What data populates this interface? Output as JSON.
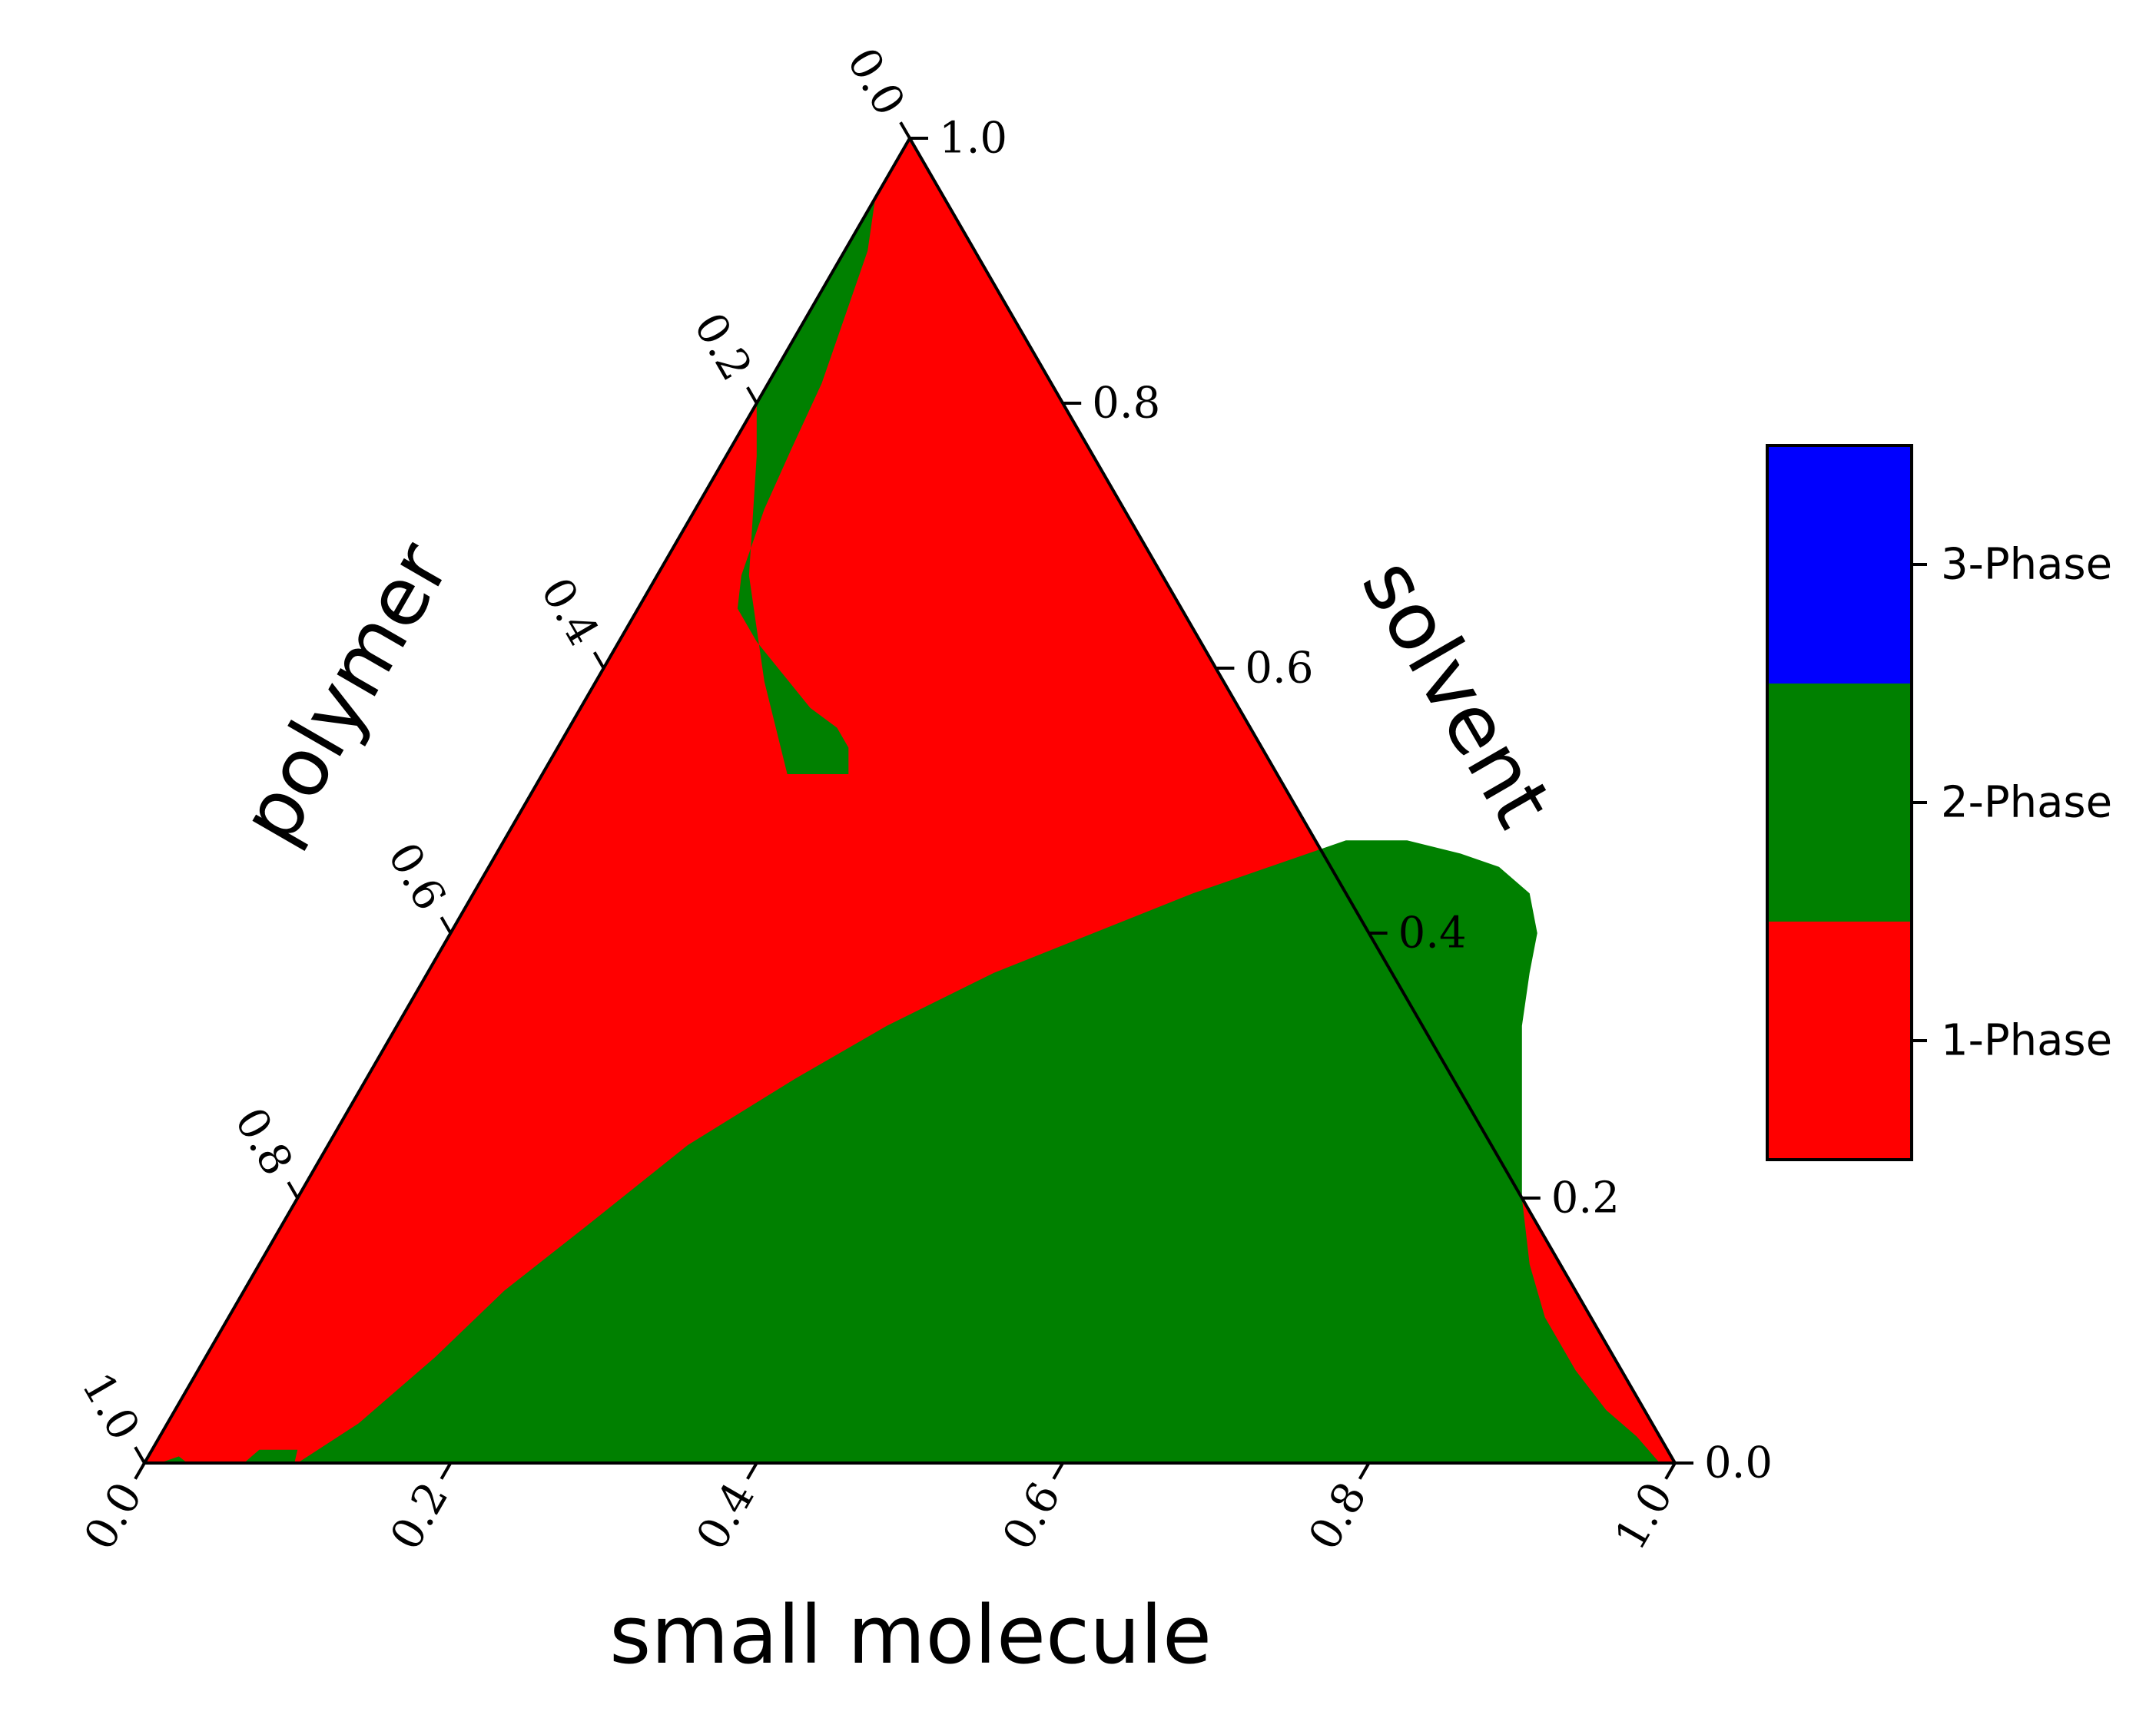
{
  "chart_data": {
    "type": "ternary-phase-map",
    "axes": {
      "bottom": {
        "label": "small molecule",
        "range": [
          0,
          1
        ]
      },
      "left": {
        "label": "polymer",
        "range": [
          0,
          1
        ]
      },
      "right": {
        "label": "solvent",
        "range": [
          0,
          1
        ]
      }
    },
    "ticks": {
      "bottom": [
        "0.0",
        "0.2",
        "0.4",
        "0.6",
        "0.8",
        "1.0"
      ],
      "left": [
        "0.0",
        "0.2",
        "0.4",
        "0.6",
        "0.8",
        "1.0"
      ],
      "right": [
        "0.0",
        "0.2",
        "0.4",
        "0.6",
        "0.8",
        "1.0"
      ]
    },
    "tick_values": [
      0,
      0.2,
      0.4,
      0.6,
      0.8,
      1.0
    ],
    "background_phase": "1-Phase",
    "phases": [
      {
        "name": "1-Phase",
        "color": "#ff0000"
      },
      {
        "name": "2-Phase",
        "color": "#008000"
      },
      {
        "name": "3-Phase",
        "color": "#0000ff"
      }
    ],
    "regions": [
      {
        "phase": "2-Phase",
        "note_boundary_as": "[small molecule, solvent] fractions",
        "boundary": [
          [
            0.1,
            0.0
          ],
          [
            0.125,
            0.03
          ],
          [
            0.15,
            0.08
          ],
          [
            0.17,
            0.13
          ],
          [
            0.2,
            0.18
          ],
          [
            0.235,
            0.24
          ],
          [
            0.28,
            0.29
          ],
          [
            0.32,
            0.33
          ],
          [
            0.37,
            0.37
          ],
          [
            0.42,
            0.4
          ],
          [
            0.47,
            0.43
          ],
          [
            0.51,
            0.45
          ],
          [
            0.55,
            0.47
          ],
          [
            0.59,
            0.47
          ],
          [
            0.63,
            0.46
          ],
          [
            0.66,
            0.45
          ],
          [
            0.69,
            0.43
          ],
          [
            0.71,
            0.4
          ],
          [
            0.72,
            0.37
          ],
          [
            0.735,
            0.33
          ],
          [
            0.755,
            0.29
          ],
          [
            0.775,
            0.25
          ],
          [
            0.8,
            0.2
          ],
          [
            0.83,
            0.15
          ],
          [
            0.86,
            0.11
          ],
          [
            0.9,
            0.07
          ],
          [
            0.935,
            0.04
          ],
          [
            0.965,
            0.02
          ],
          [
            0.99,
            0.0
          ]
        ]
      },
      {
        "phase": "2-Phase",
        "note_boundary_as": "[small molecule, solvent] fractions",
        "boundary": [
          [
            0.01,
            0.0
          ],
          [
            0.02,
            0.005
          ],
          [
            0.028,
            0.0
          ]
        ]
      },
      {
        "phase": "2-Phase",
        "note_boundary_as": "[small molecule, solvent] fractions",
        "boundary": [
          [
            0.065,
            0.0
          ],
          [
            0.07,
            0.01
          ],
          [
            0.095,
            0.01
          ],
          [
            0.098,
            0.0
          ]
        ]
      },
      {
        "phase": "2-Phase",
        "note_boundary_as": "[small molecule, solvent] fractions",
        "boundary": [
          [
            0.0,
            0.955
          ],
          [
            0.015,
            0.915
          ],
          [
            0.025,
            0.865
          ],
          [
            0.035,
            0.815
          ],
          [
            0.04,
            0.765
          ],
          [
            0.045,
            0.72
          ],
          [
            0.05,
            0.695
          ],
          [
            0.055,
            0.67
          ],
          [
            0.065,
            0.645
          ],
          [
            0.09,
            0.62
          ],
          [
            0.12,
            0.595
          ],
          [
            0.15,
            0.57
          ],
          [
            0.175,
            0.555
          ],
          [
            0.19,
            0.54
          ],
          [
            0.2,
            0.52
          ],
          [
            0.16,
            0.52
          ],
          [
            0.11,
            0.59
          ],
          [
            0.06,
            0.67
          ],
          [
            0.02,
            0.76
          ],
          [
            0.0,
            0.8
          ]
        ]
      }
    ]
  }
}
